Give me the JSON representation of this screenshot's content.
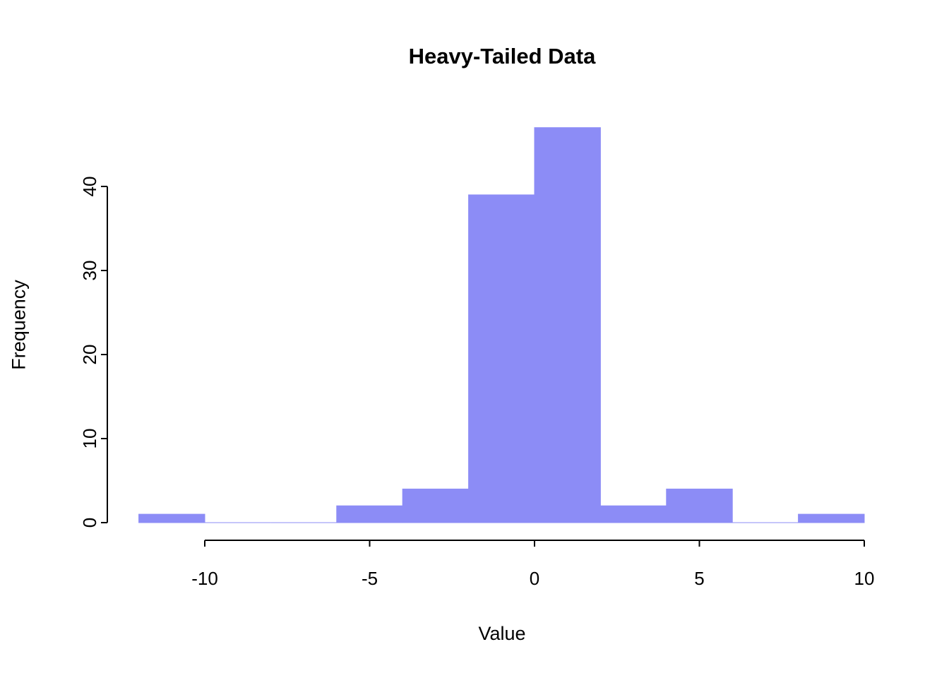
{
  "chart_data": {
    "type": "bar",
    "subtype": "histogram",
    "title": "Heavy-Tailed Data",
    "xlabel": "Value",
    "ylabel": "Frequency",
    "bin_edges": [
      -12,
      -10,
      -8,
      -6,
      -4,
      -2,
      0,
      2,
      4,
      6,
      8,
      10
    ],
    "counts": [
      1,
      0,
      0,
      2,
      4,
      39,
      47,
      2,
      4,
      0,
      1
    ],
    "x_ticks": [
      -10,
      -5,
      0,
      5,
      10
    ],
    "y_ticks": [
      0,
      10,
      20,
      30,
      40
    ],
    "xlim": [
      -12,
      10
    ],
    "ylim": [
      0,
      47
    ],
    "grid": false,
    "legend": false,
    "bar_fill": "#8c8cf6",
    "bar_border": "#8c8cf6",
    "axis_color": "#000000",
    "text_color": "#000000",
    "background": "#ffffff"
  }
}
